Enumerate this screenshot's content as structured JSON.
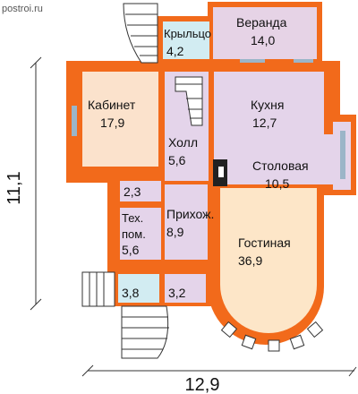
{
  "watermark": "postroi.ru",
  "dimensions": {
    "width_label": "12,9",
    "height_label": "11,1"
  },
  "rooms": {
    "veranda": {
      "name": "Веранда",
      "area": "14,0"
    },
    "porch_top": {
      "name": "Крыльцо",
      "area": "4,2"
    },
    "office": {
      "name": "Кабинет",
      "area": "17,9"
    },
    "kitchen": {
      "name": "Кухня",
      "area": "12,7"
    },
    "hall": {
      "name": "Холл",
      "area": "5,6"
    },
    "dining": {
      "name": "Столовая",
      "area": "10,5"
    },
    "wc": {
      "area": "2,3"
    },
    "tech": {
      "name_line1": "Тех.",
      "name_line2": "пом.",
      "area": "5,6"
    },
    "entry": {
      "name": "Прихож.",
      "area": "8,9"
    },
    "living": {
      "name": "Гостиная",
      "area": "36,9"
    },
    "porch_bottom": {
      "area": "3,8"
    },
    "vestibule": {
      "area": "3,2"
    }
  },
  "colors": {
    "wall": "#f26a1b",
    "veranda": "#e6d3e6",
    "lilac": "#e4d4ea",
    "office": "#fbe2cc",
    "living": "#fde6c8",
    "porch": "#d2ecf2",
    "stairs": "#ffffff"
  }
}
